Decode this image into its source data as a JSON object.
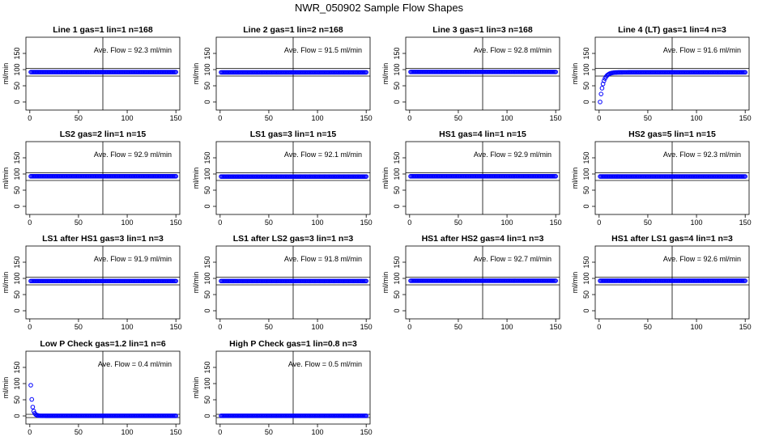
{
  "figure": {
    "title": "NWR_050902  Sample Flow Shapes"
  },
  "axes_template": {
    "xlim": [
      -4,
      154
    ],
    "ylim": [
      -25,
      200
    ],
    "xticks": [
      0,
      50,
      100,
      150
    ],
    "yticks": [
      0,
      50,
      100,
      150
    ],
    "ylabel": "ml/min",
    "marker_color": "#0000ff"
  },
  "chart_data": [
    {
      "type": "scatter",
      "title": "Line 1 gas=1 lin=1 n=168",
      "annotation": "Ave. Flow =  92.3  ml/min",
      "hlines": [
        80,
        104
      ],
      "vline": 75,
      "series": [
        {
          "shape": "flat",
          "level": 92.3,
          "n": 150
        }
      ]
    },
    {
      "type": "scatter",
      "title": "Line 2 gas=1 lin=2 n=168",
      "annotation": "Ave. Flow =  91.5  ml/min",
      "hlines": [
        80,
        104
      ],
      "vline": 75,
      "series": [
        {
          "shape": "flat",
          "level": 91.5,
          "n": 150
        }
      ]
    },
    {
      "type": "scatter",
      "title": "Line 3 gas=1 lin=3 n=168",
      "annotation": "Ave. Flow =  92.8  ml/min",
      "hlines": [
        80,
        104
      ],
      "vline": 75,
      "series": [
        {
          "shape": "flat",
          "level": 92.8,
          "n": 150
        }
      ]
    },
    {
      "type": "scatter",
      "title": "Line 4 (LT) gas=1 lin=4 n=3",
      "annotation": "Ave. Flow =  91.6  ml/min",
      "hlines": [
        80,
        104
      ],
      "vline": 75,
      "series": [
        {
          "shape": "rise",
          "level": 91.6,
          "n": 150,
          "start": 0
        }
      ]
    },
    {
      "type": "scatter",
      "title": "LS2 gas=2 lin=1 n=15",
      "annotation": "Ave. Flow =  92.9  ml/min",
      "hlines": [
        80,
        104
      ],
      "vline": 75,
      "series": [
        {
          "shape": "flat",
          "level": 92.9,
          "n": 150
        }
      ]
    },
    {
      "type": "scatter",
      "title": "LS1 gas=3 lin=1 n=15",
      "annotation": "Ave. Flow =  92.1  ml/min",
      "hlines": [
        80,
        104
      ],
      "vline": 75,
      "series": [
        {
          "shape": "flat",
          "level": 92.1,
          "n": 150
        }
      ]
    },
    {
      "type": "scatter",
      "title": "HS1 gas=4 lin=1 n=15",
      "annotation": "Ave. Flow =  92.9  ml/min",
      "hlines": [
        80,
        104
      ],
      "vline": 75,
      "series": [
        {
          "shape": "flat",
          "level": 92.9,
          "n": 150
        }
      ]
    },
    {
      "type": "scatter",
      "title": "HS2 gas=5 lin=1 n=15",
      "annotation": "Ave. Flow =  92.3  ml/min",
      "hlines": [
        80,
        104
      ],
      "vline": 75,
      "series": [
        {
          "shape": "flat",
          "level": 92.3,
          "n": 150
        }
      ]
    },
    {
      "type": "scatter",
      "title": "LS1 after HS1 gas=3 lin=1 n=3",
      "annotation": "Ave. Flow =  91.9  ml/min",
      "hlines": [
        80,
        104
      ],
      "vline": 75,
      "series": [
        {
          "shape": "flat",
          "level": 91.9,
          "n": 150
        }
      ]
    },
    {
      "type": "scatter",
      "title": "LS1 after LS2 gas=3 lin=1 n=3",
      "annotation": "Ave. Flow =  91.8  ml/min",
      "hlines": [
        80,
        104
      ],
      "vline": 75,
      "series": [
        {
          "shape": "flat",
          "level": 91.8,
          "n": 150
        }
      ]
    },
    {
      "type": "scatter",
      "title": "HS1 after HS2 gas=4 lin=1 n=3",
      "annotation": "Ave. Flow =  92.7  ml/min",
      "hlines": [
        80,
        104
      ],
      "vline": 75,
      "series": [
        {
          "shape": "flat",
          "level": 92.7,
          "n": 150
        }
      ]
    },
    {
      "type": "scatter",
      "title": "HS1 after LS1 gas=4 lin=1 n=3",
      "annotation": "Ave. Flow =  92.6  ml/min",
      "hlines": [
        80,
        104
      ],
      "vline": 75,
      "series": [
        {
          "shape": "flat",
          "level": 92.6,
          "n": 150
        }
      ]
    },
    {
      "type": "scatter",
      "title": "Low P Check gas=1.2 lin=1 n=6",
      "annotation": "Ave. Flow =  0.4  ml/min",
      "hlines": [
        -5,
        5
      ],
      "vline": 75,
      "series": [
        {
          "shape": "decay",
          "level": 0.4,
          "n": 150,
          "start": 95
        }
      ]
    },
    {
      "type": "scatter",
      "title": "High P Check gas=1 lin=0.8 n=3",
      "annotation": "Ave. Flow =  0.5  ml/min",
      "hlines": [
        -5,
        5
      ],
      "vline": 75,
      "series": [
        {
          "shape": "flat",
          "level": 0.5,
          "n": 150
        }
      ]
    }
  ]
}
